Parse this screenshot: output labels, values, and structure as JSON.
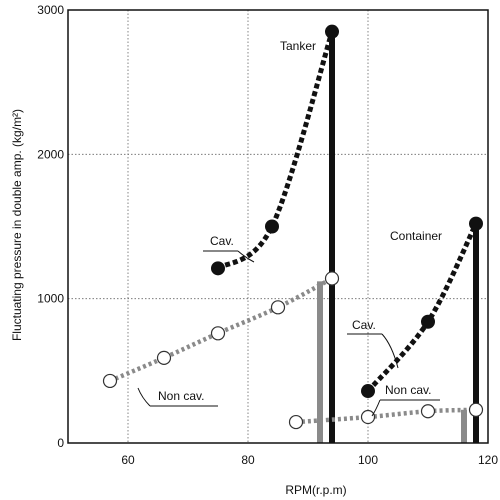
{
  "chart_data": {
    "type": "line",
    "xlabel": "RPM(r.p.m)",
    "ylabel": "Fluctuating pressure in double amp. (kg/m²)",
    "xlim": [
      50,
      120
    ],
    "ylim": [
      0,
      3000
    ],
    "x_ticks": [
      "60",
      "80",
      "100",
      "120"
    ],
    "y_ticks": [
      "0",
      "1000",
      "2000",
      "3000"
    ],
    "grid": true,
    "annotations": {
      "tanker": "Tanker",
      "container": "Container",
      "tanker_cav": "Cav.",
      "tanker_noncav": "Non cav.",
      "container_cav": "Cav.",
      "container_noncav": "Non cav."
    },
    "series": [
      {
        "group": "Tanker",
        "condition": "cavitating",
        "color": "#111111",
        "marker": "filled",
        "x": [
          75,
          84,
          94
        ],
        "y": [
          1210,
          1500,
          2850
        ]
      },
      {
        "group": "Tanker",
        "condition": "non-cavitating",
        "color": "#8a8a8a",
        "marker": "open",
        "x": [
          57,
          66,
          75,
          85,
          94
        ],
        "y": [
          430,
          590,
          760,
          940,
          1140
        ]
      },
      {
        "group": "Container",
        "condition": "cavitating",
        "color": "#111111",
        "marker": "filled",
        "x": [
          100,
          110,
          118
        ],
        "y": [
          360,
          840,
          1520
        ]
      },
      {
        "group": "Container",
        "condition": "non-cavitating",
        "color": "#8a8a8a",
        "marker": "open",
        "x": [
          88,
          100,
          110,
          118
        ],
        "y": [
          145,
          180,
          220,
          230
        ]
      }
    ],
    "bars": [
      {
        "group": "Tanker",
        "condition": "cavitating",
        "x": 94,
        "y": 2850,
        "color": "#111111"
      },
      {
        "group": "Tanker",
        "condition": "non-cavitating",
        "x": 92,
        "y": 1120,
        "color": "#8a8a8a"
      },
      {
        "group": "Container",
        "condition": "cavitating",
        "x": 118,
        "y": 1500,
        "color": "#111111"
      },
      {
        "group": "Container",
        "condition": "non-cavitating",
        "x": 116,
        "y": 230,
        "color": "#8a8a8a"
      }
    ]
  }
}
